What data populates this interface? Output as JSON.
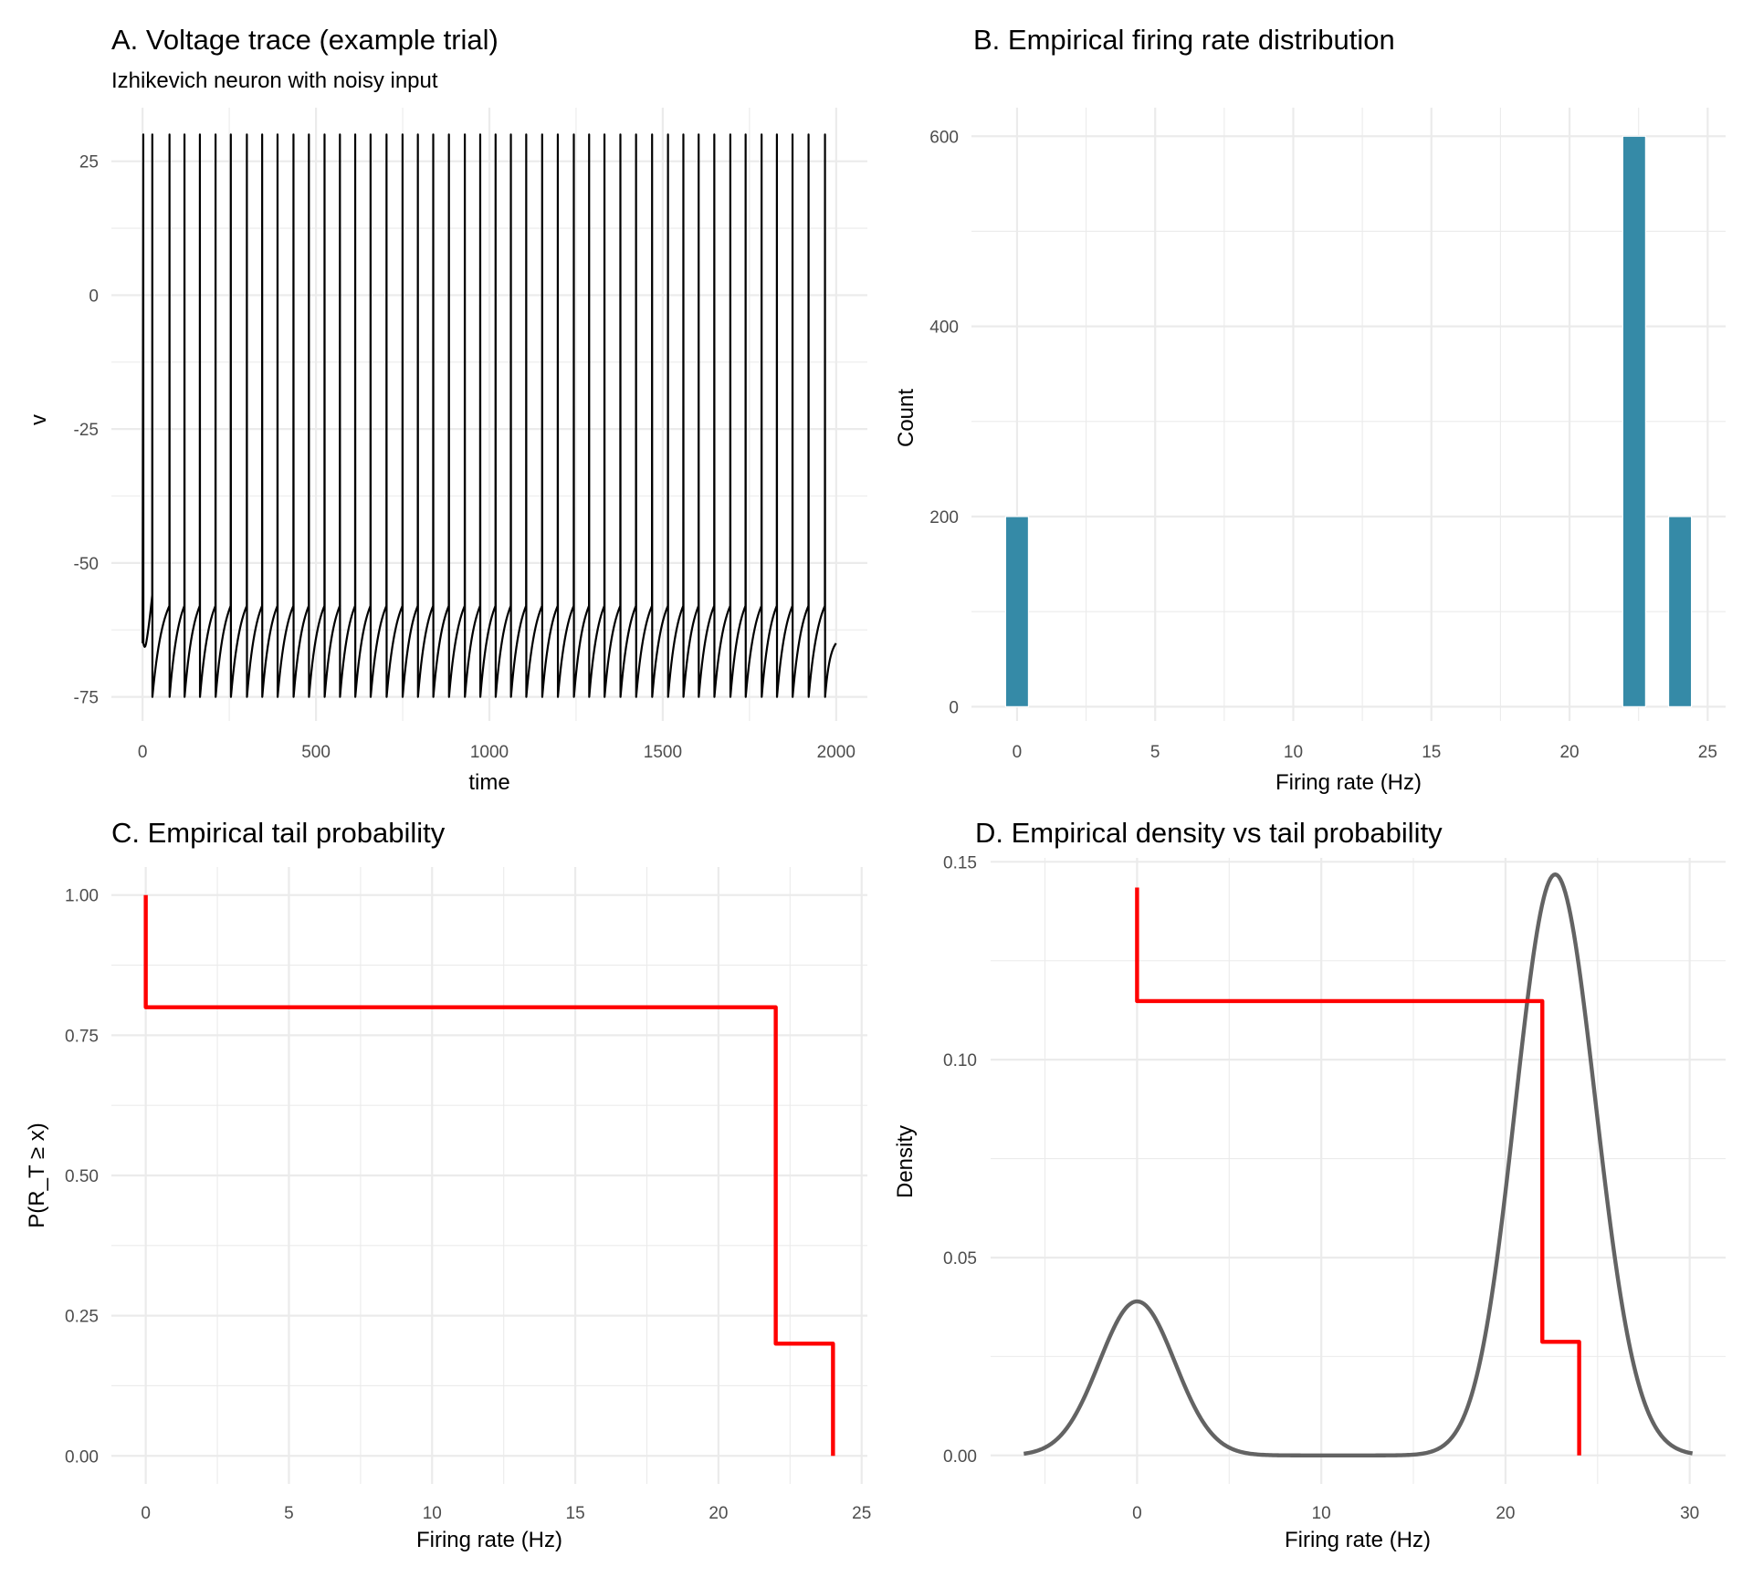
{
  "chart_data": [
    {
      "id": "A",
      "type": "line",
      "title": "A. Voltage trace (example trial)",
      "subtitle": "Izhikevich neuron with noisy input",
      "xlabel": "time",
      "ylabel": "v",
      "xlim": [
        -90,
        2090
      ],
      "ylim": [
        -79.5,
        35
      ],
      "x_ticks": [
        0,
        500,
        1000,
        1500,
        2000
      ],
      "x_tick_labels": [
        "0",
        "500",
        "1000",
        "1500",
        "2000"
      ],
      "y_ticks": [
        -75,
        -50,
        -25,
        0,
        25
      ],
      "y_tick_labels": [
        "-75",
        "-50",
        "-25",
        "0",
        "25"
      ],
      "grid": true,
      "line_color": "#000000",
      "series": [
        {
          "name": "v",
          "t_start": 0,
          "t_end": 2000,
          "v_start": -65,
          "v_end": -65,
          "spike_peak": 30,
          "reset": -75,
          "first_reset": -67,
          "pre_spike_level": -58,
          "spike_times": [
            2,
            28,
            77.6,
            120.8,
            165.2,
            210.4,
            254.4,
            300.7,
            344.8,
            389.1,
            435.1,
            479.5,
            524.7,
            569,
            613.1,
            657.4,
            703.4,
            749.6,
            793.8,
            838.1,
            883.3,
            929.2,
            973.6,
            1017.9,
            1062,
            1106.2,
            1152.2,
            1197.3,
            1243.5,
            1287.6,
            1331.9,
            1377.8,
            1423,
            1469.2,
            1515.1,
            1559.4,
            1603.5,
            1648.6,
            1694.8,
            1738.9,
            1785,
            1829.1,
            1874.2,
            1920.4,
            1967.8
          ]
        }
      ]
    },
    {
      "id": "B",
      "type": "bar",
      "title": "B. Empirical firing rate distribution",
      "xlabel": "Firing rate (Hz)",
      "ylabel": "Count",
      "xlim": [
        -1.65,
        25.65
      ],
      "ylim": [
        -15,
        630
      ],
      "x_ticks": [
        0,
        5,
        10,
        15,
        20,
        25
      ],
      "x_tick_labels": [
        "0",
        "5",
        "10",
        "15",
        "20",
        "25"
      ],
      "y_ticks": [
        0,
        200,
        400,
        600
      ],
      "y_tick_labels": [
        "0",
        "200",
        "400",
        "600"
      ],
      "grid": true,
      "bar_color": "#358AA7",
      "bin_width": 0.8276,
      "bins": [
        {
          "center": 0,
          "count": 200
        },
        {
          "center": 22.34,
          "count": 600
        },
        {
          "center": 24.0,
          "count": 200
        }
      ]
    },
    {
      "id": "C",
      "type": "line",
      "step": true,
      "title": "C. Empirical tail probability",
      "xlabel": "Firing rate (Hz)",
      "ylabel": "P(R_T ≥ x)",
      "xlim": [
        -1.2,
        25.2
      ],
      "ylim": [
        -0.05,
        1.05
      ],
      "x_ticks": [
        0,
        5,
        10,
        15,
        20,
        25
      ],
      "x_tick_labels": [
        "0",
        "5",
        "10",
        "15",
        "20",
        "25"
      ],
      "y_ticks": [
        0,
        0.25,
        0.5,
        0.75,
        1.0
      ],
      "y_tick_labels": [
        "0.00",
        "0.25",
        "0.50",
        "0.75",
        "1.00"
      ],
      "grid": true,
      "line_color": "#FF0000",
      "series": [
        {
          "name": "tail probability",
          "x": [
            0,
            0,
            22,
            22,
            24,
            24
          ],
          "y": [
            1.0,
            0.8,
            0.8,
            0.2,
            0.2,
            0.0
          ]
        }
      ]
    },
    {
      "id": "D",
      "type": "line",
      "title": "D. Empirical density vs tail probability",
      "xlabel": "Firing rate (Hz)",
      "ylabel": "Density",
      "xlim": [
        -7.95,
        31.95
      ],
      "ylim": [
        -0.0072,
        0.151
      ],
      "x_ticks": [
        0,
        10,
        20,
        30
      ],
      "x_tick_labels": [
        "0",
        "10",
        "20",
        "30"
      ],
      "y_ticks": [
        0,
        0.05,
        0.1,
        0.15
      ],
      "y_tick_labels": [
        "0.00",
        "0.05",
        "0.10",
        "0.15"
      ],
      "grid": true,
      "series": [
        {
          "name": "density",
          "color": "#636363",
          "kde": {
            "points": [
              0,
              22.34,
              24.0
            ],
            "weights": [
              0.2,
              0.6,
              0.2
            ],
            "bandwidth": 2.05,
            "from": -6.15,
            "to": 30.15
          },
          "peak_values": [
            {
              "x": 0,
              "y": 0.0389
            },
            {
              "x": 22.37,
              "y": 0.1435
            }
          ]
        },
        {
          "name": "scaled tail probability",
          "color": "#FF0000",
          "x": [
            0,
            0,
            22,
            22,
            24,
            24
          ],
          "y": [
            0.1435,
            0.1148,
            0.1148,
            0.0287,
            0.0287,
            0.0
          ]
        }
      ]
    }
  ]
}
